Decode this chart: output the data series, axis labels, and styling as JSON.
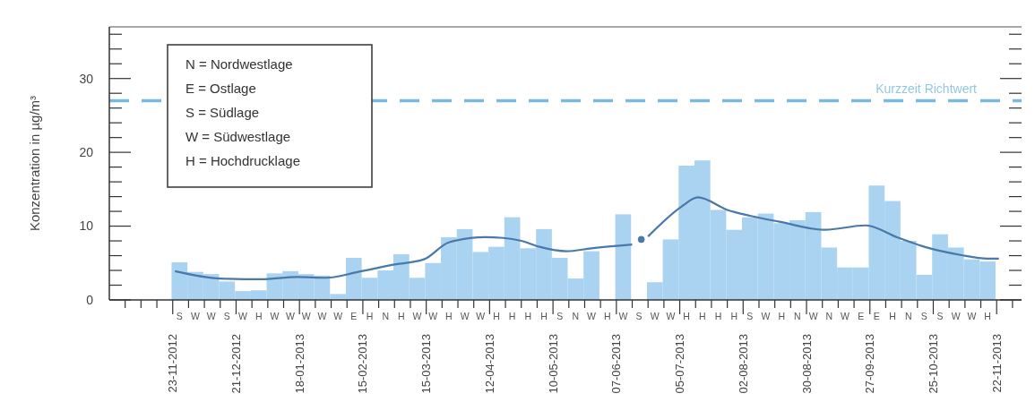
{
  "chart_data": {
    "type": "bar",
    "ylabel": "Konzentration in µg/m³",
    "xlim": [
      "2012-10-26",
      "2013-12-03"
    ],
    "xticks": [
      {
        "value": "2012-11-02",
        "label": null
      },
      {
        "value": "2012-11-09",
        "label": null
      },
      {
        "value": "2012-11-16",
        "label": null
      },
      {
        "value": "2012-11-23",
        "label": "23-11-2012"
      },
      {
        "value": "2012-11-30",
        "label": null
      },
      {
        "value": "2012-12-07",
        "label": null
      },
      {
        "value": "2012-12-14",
        "label": null
      },
      {
        "value": "2012-12-21",
        "label": "21-12-2012"
      },
      {
        "value": "2012-12-28",
        "label": null
      },
      {
        "value": "2013-01-04",
        "label": null
      },
      {
        "value": "2013-01-11",
        "label": null
      },
      {
        "value": "2013-01-18",
        "label": "18-01-2013"
      },
      {
        "value": "2013-01-25",
        "label": null
      },
      {
        "value": "2013-02-01",
        "label": null
      },
      {
        "value": "2013-02-08",
        "label": null
      },
      {
        "value": "2013-02-15",
        "label": "15-02-2013"
      },
      {
        "value": "2013-02-22",
        "label": null
      },
      {
        "value": "2013-03-01",
        "label": null
      },
      {
        "value": "2013-03-08",
        "label": null
      },
      {
        "value": "2013-03-15",
        "label": "15-03-2013"
      },
      {
        "value": "2013-03-22",
        "label": null
      },
      {
        "value": "2013-03-29",
        "label": null
      },
      {
        "value": "2013-04-05",
        "label": null
      },
      {
        "value": "2013-04-12",
        "label": "12-04-2013"
      },
      {
        "value": "2013-04-19",
        "label": null
      },
      {
        "value": "2013-04-26",
        "label": null
      },
      {
        "value": "2013-05-03",
        "label": null
      },
      {
        "value": "2013-05-10",
        "label": "10-05-2013"
      },
      {
        "value": "2013-05-17",
        "label": null
      },
      {
        "value": "2013-05-24",
        "label": null
      },
      {
        "value": "2013-05-31",
        "label": null
      },
      {
        "value": "2013-06-07",
        "label": "07-06-2013"
      },
      {
        "value": "2013-06-14",
        "label": null
      },
      {
        "value": "2013-06-21",
        "label": null
      },
      {
        "value": "2013-06-28",
        "label": null
      },
      {
        "value": "2013-07-05",
        "label": "05-07-2013"
      },
      {
        "value": "2013-07-12",
        "label": null
      },
      {
        "value": "2013-07-19",
        "label": null
      },
      {
        "value": "2013-07-26",
        "label": null
      },
      {
        "value": "2013-08-02",
        "label": "02-08-2013"
      },
      {
        "value": "2013-08-09",
        "label": null
      },
      {
        "value": "2013-08-16",
        "label": null
      },
      {
        "value": "2013-08-23",
        "label": null
      },
      {
        "value": "2013-08-30",
        "label": "30-08-2013"
      },
      {
        "value": "2013-09-06",
        "label": null
      },
      {
        "value": "2013-09-13",
        "label": null
      },
      {
        "value": "2013-09-20",
        "label": null
      },
      {
        "value": "2013-09-27",
        "label": "27-09-2013"
      },
      {
        "value": "2013-10-04",
        "label": null
      },
      {
        "value": "2013-10-11",
        "label": null
      },
      {
        "value": "2013-10-18",
        "label": null
      },
      {
        "value": "2013-10-25",
        "label": "25-10-2013"
      },
      {
        "value": "2013-11-01",
        "label": null
      },
      {
        "value": "2013-11-08",
        "label": null
      },
      {
        "value": "2013-11-15",
        "label": null
      },
      {
        "value": "2013-11-22",
        "label": "22-11-2013"
      },
      {
        "value": "2013-11-29",
        "label": null
      }
    ],
    "ylim": [
      0,
      37
    ],
    "yticks": [
      0,
      {
        "value": 2,
        "label": null
      },
      {
        "value": 4,
        "label": null
      },
      {
        "value": 6,
        "label": null
      },
      {
        "value": 8,
        "label": null
      },
      10,
      {
        "value": 12,
        "label": null
      },
      {
        "value": 14,
        "label": null
      },
      {
        "value": 16,
        "label": null
      },
      {
        "value": 18,
        "label": null
      },
      20,
      {
        "value": 22,
        "label": null
      },
      {
        "value": 24,
        "label": null
      },
      {
        "value": 26,
        "label": null
      },
      {
        "value": 28,
        "label": null
      },
      30,
      {
        "value": 32,
        "label": null
      },
      {
        "value": 34,
        "label": null
      },
      {
        "value": 36,
        "label": null
      }
    ],
    "series": [
      {
        "color": "#a9d3f0",
        "x": [
          "2012-11-26",
          "2012-12-03",
          "2012-12-10",
          "2012-12-17",
          "2012-12-24",
          "2012-12-31",
          "2013-01-07",
          "2013-01-14",
          "2013-01-21",
          "2013-01-28",
          "2013-02-04",
          "2013-02-11",
          "2013-02-18",
          "2013-02-25",
          "2013-03-04",
          "2013-03-11",
          "2013-03-18",
          "2013-03-25",
          "2013-04-01",
          "2013-04-08",
          "2013-04-15",
          "2013-04-22",
          "2013-04-29",
          "2013-05-06",
          "2013-05-13",
          "2013-05-20",
          "2013-05-27",
          "2013-06-03",
          "2013-06-10",
          "2013-06-17",
          "2013-06-24",
          "2013-07-01",
          "2013-07-08",
          "2013-07-15",
          "2013-07-22",
          "2013-07-29",
          "2013-08-05",
          "2013-08-12",
          "2013-08-19",
          "2013-08-26",
          "2013-09-02",
          "2013-09-09",
          "2013-09-16",
          "2013-09-23",
          "2013-09-30",
          "2013-10-07",
          "2013-10-14",
          "2013-10-21",
          "2013-10-28",
          "2013-11-04",
          "2013-11-11",
          "2013-11-18"
        ],
        "values": [
          5.1,
          3.8,
          3.5,
          2.5,
          1.2,
          1.3,
          3.6,
          3.9,
          3.5,
          3.3,
          0.8,
          5.7,
          3.0,
          4.0,
          6.2,
          3.0,
          5.0,
          8.5,
          9.6,
          6.5,
          7.2,
          11.2,
          7.0,
          9.6,
          5.7,
          2.9,
          6.6,
          null,
          11.6,
          null,
          2.4,
          8.2,
          18.2,
          18.9,
          12.2,
          9.5,
          11.2,
          11.7,
          10.4,
          10.8,
          11.9,
          7.1,
          4.4,
          4.4,
          15.5,
          13.4,
          8.0,
          3.4,
          8.9,
          7.1,
          5.5,
          5.2
        ]
      },
      {
        "type": "line",
        "color": "#4a78a8",
        "x": [
          "2012-11-24",
          "2012-12-14",
          "2013-01-01",
          "2013-01-17",
          "2013-01-30",
          "2013-02-13",
          "2013-03-01",
          "2013-03-14",
          "2013-03-25",
          "2013-04-10",
          "2013-04-18",
          "2013-04-26",
          "2013-05-04",
          "2013-05-16",
          "2013-05-27",
          "2013-06-14",
          "2013-06-18",
          "2013-06-21",
          "2013-07-06",
          "2013-07-13",
          "2013-07-26",
          "2013-08-05",
          "2013-08-18",
          "2013-09-07",
          "2013-09-25",
          "2013-10-09",
          "2013-10-21",
          "2013-11-06",
          "2013-11-18",
          "2013-11-23"
        ],
        "values": [
          3.9,
          2.9,
          2.8,
          3.1,
          3.0,
          3.8,
          4.8,
          5.5,
          7.8,
          8.5,
          8.4,
          8.0,
          7.2,
          6.6,
          7.0,
          7.5,
          null,
          8.6,
          12.7,
          13.9,
          12.2,
          11.4,
          10.6,
          9.5,
          10.1,
          8.5,
          7.2,
          6.1,
          5.6,
          5.6
        ]
      },
      {
        "type": "scatter",
        "color": "#4a78a8",
        "marker": "circle",
        "x": [
          "2013-06-18"
        ],
        "values": [
          8.2
        ]
      }
    ],
    "ref_lines": [
      {
        "axis": "y",
        "value": 27,
        "label": "Kurzzeit Richtwert",
        "color": "#7ab8dc",
        "line_style": "dashed"
      }
    ],
    "annotations": [
      "S",
      "W",
      "W",
      "S",
      "W",
      "H",
      "W",
      "W",
      "W",
      "W",
      "W",
      "E",
      "H",
      "N",
      "H",
      "W",
      "W",
      "H",
      "W",
      "W",
      "H",
      "H",
      "H",
      "H",
      "S",
      "N",
      "W",
      "H",
      "W",
      "S",
      "W",
      "W",
      "H",
      "H",
      "H",
      "H",
      "S",
      "W",
      "H",
      "N",
      "W",
      "N",
      "W",
      "E",
      "E",
      "H",
      "N",
      "S",
      "S",
      "W",
      "W",
      "H",
      "N = Nordwestlage",
      "E = Ostlage",
      "S = Südlage",
      "W = Südwestlage",
      "H = Hochdrucklage"
    ]
  }
}
